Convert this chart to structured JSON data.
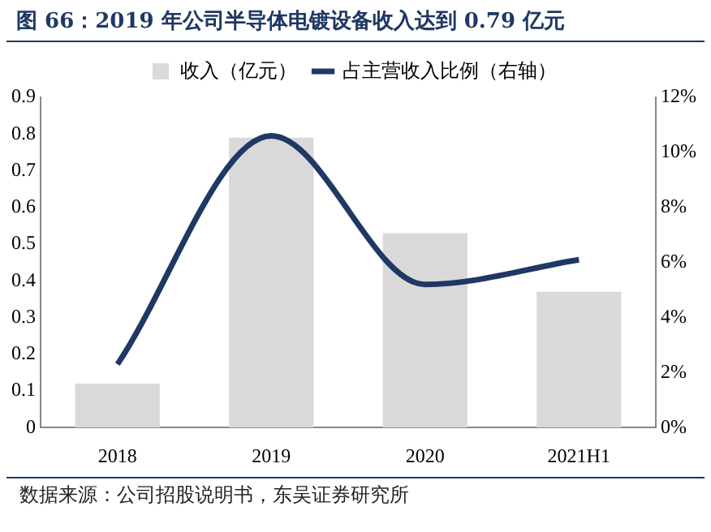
{
  "chart_data": {
    "type": "bar",
    "title": "图 66：2019 年公司半导体电镀设备收入达到 0.79 亿元",
    "categories": [
      "2018",
      "2019",
      "2020",
      "2021H1"
    ],
    "series": [
      {
        "name": "收入（亿元）",
        "color": "#d9d9d9",
        "values": [
          0.12,
          0.79,
          0.53,
          0.37
        ]
      },
      {
        "name": "占主营收入比例（右轴）",
        "type": "line",
        "axis": "y2",
        "color": "#1f3864",
        "values": [
          2.3,
          10.6,
          5.2,
          6.1
        ]
      }
    ],
    "ylim": [
      0,
      0.9
    ],
    "yticks": [
      0,
      0.1,
      0.2,
      0.3,
      0.4,
      0.5,
      0.6,
      0.7,
      0.8,
      0.9
    ],
    "y2lim": [
      0,
      12
    ],
    "y2ticks": [
      {
        "value": 0,
        "label": "0%"
      },
      {
        "value": 2,
        "label": "2%"
      },
      {
        "value": 4,
        "label": "4%"
      },
      {
        "value": 6,
        "label": "6%"
      },
      {
        "value": 8,
        "label": "8%"
      },
      {
        "value": 10,
        "label": "10%"
      },
      {
        "value": 12,
        "label": "12%"
      }
    ],
    "legend": "top",
    "marker": "none",
    "line_style": "solid",
    "annotations": [
      "数据来源：公司招股说明书，东吴证券研究所"
    ]
  }
}
